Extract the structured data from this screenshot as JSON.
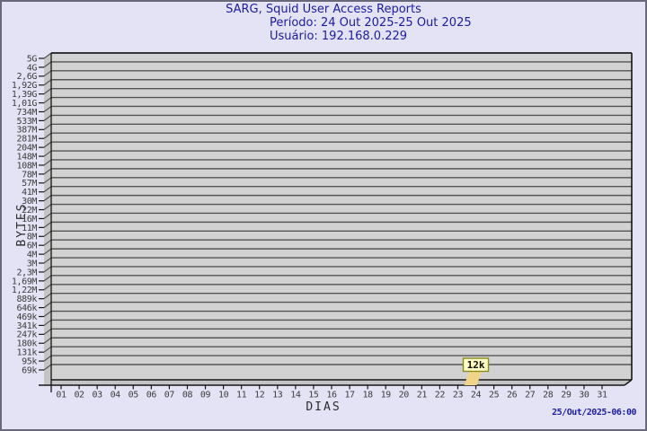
{
  "header": {
    "title": "SARG, Squid User Access Reports",
    "period": "Período: 24 Out 2025-25 Out 2025",
    "user": "Usuário: 192.168.0.229"
  },
  "footer": {
    "timestamp": "25/Out/2025-06:00"
  },
  "colors": {
    "background": "#e3e3f5",
    "screen_border": "#68687a",
    "title_text": "#1c1c9e",
    "plot_wall": "#d2d2d2",
    "plot_side": "#c4c4c4",
    "gridline": "#555555",
    "axis": "#161616",
    "tick_text": "#3d3d3d",
    "flag_fill": "#ffffc6",
    "flag_border": "#8a8a1e",
    "flag_stem": "#f0d488",
    "flag_text": "#111100"
  },
  "chart_data": {
    "type": "bar",
    "title": "SARG, Squid User Access Reports",
    "subtitle": "Período: 24 Out 2025-25 Out 2025 / Usuário: 192.168.0.229",
    "xlabel": "DIAS",
    "ylabel": "BYTES",
    "grid": true,
    "legend": false,
    "style": "3d-wall-log-scale",
    "x_tick_labels": [
      "01",
      "02",
      "03",
      "04",
      "05",
      "06",
      "07",
      "08",
      "09",
      "10",
      "11",
      "12",
      "13",
      "14",
      "15",
      "16",
      "17",
      "18",
      "19",
      "20",
      "21",
      "22",
      "23",
      "24",
      "25",
      "26",
      "27",
      "28",
      "29",
      "30",
      "31"
    ],
    "y_tick_labels": [
      "5G",
      "4G",
      "2,6G",
      "1,92G",
      "1,39G",
      "1,01G",
      "734M",
      "533M",
      "387M",
      "281M",
      "204M",
      "148M",
      "108M",
      "78M",
      "57M",
      "41M",
      "30M",
      "22M",
      "16M",
      "11M",
      "8M",
      "6M",
      "4M",
      "3M",
      "2,3M",
      "1,69M",
      "1,22M",
      "889k",
      "646k",
      "469k",
      "341k",
      "247k",
      "180k",
      "131k",
      "95k",
      "69k"
    ],
    "y_axis_range": [
      "69k",
      "5G"
    ],
    "points": [
      {
        "day": "24",
        "value": "12k",
        "label": "12k"
      }
    ]
  }
}
